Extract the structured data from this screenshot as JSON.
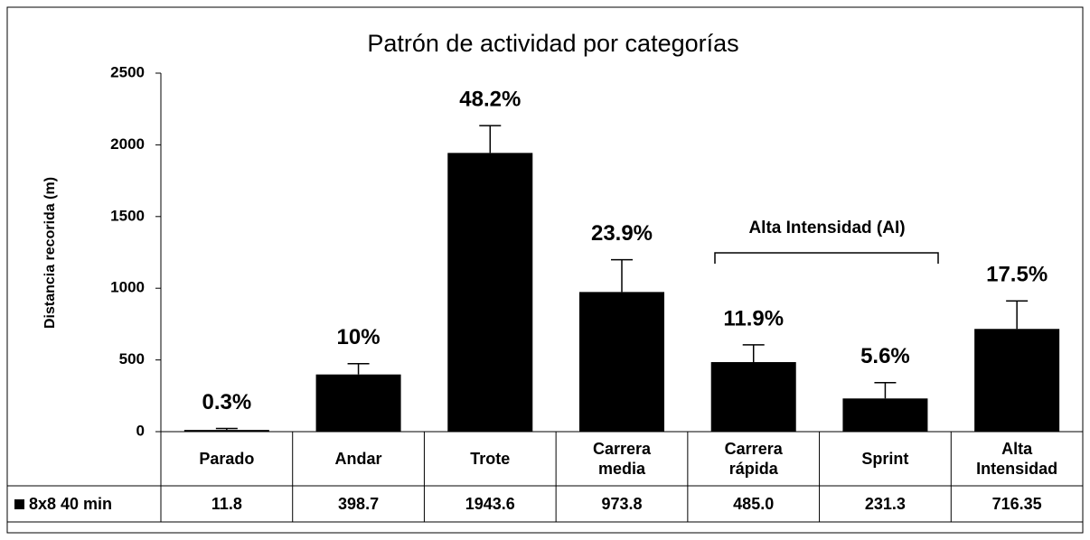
{
  "chart_data": {
    "type": "bar",
    "title": "Patrón de actividad por categorías",
    "y_label": "Distancia recorida (m)",
    "categories": [
      "Parado",
      "Andar",
      "Trote",
      "Carrera media",
      "Carrera rápida",
      "Sprint",
      "Alta Intensidad"
    ],
    "series": [
      {
        "name": "8x8 40 min",
        "color": "#000000",
        "values": [
          11.8,
          398.7,
          1943.6,
          973.8,
          485.0,
          231.3,
          716.35
        ],
        "value_labels": [
          "11.8",
          "398.7",
          "1943.6",
          "973.8",
          "485.0",
          "231.3",
          "716.35"
        ],
        "errors": [
          10,
          75,
          190,
          225,
          120,
          110,
          195
        ]
      }
    ],
    "percent_labels": [
      "0.3%",
      "10%",
      "48.2%",
      "23.9%",
      "11.9%",
      "5.6%",
      "17.5%"
    ],
    "bracket_label": "Alta Intensidad (AI)",
    "ylim": [
      0,
      2500
    ],
    "yticks": [
      0,
      500,
      1000,
      1500,
      2000,
      2500
    ]
  }
}
